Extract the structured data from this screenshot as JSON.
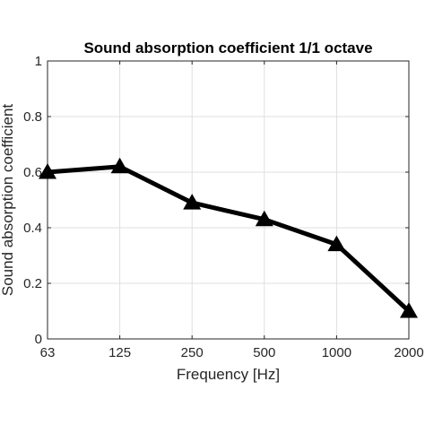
{
  "chart_data": {
    "type": "line",
    "title": "Sound absorption coefficient 1/1 octave",
    "xlabel": "Frequency [Hz]",
    "ylabel": "Sound absorption coefficient",
    "categories": [
      "63",
      "125",
      "250",
      "500",
      "1000",
      "2000"
    ],
    "series": [
      {
        "values": [
          0.6,
          0.62,
          0.49,
          0.43,
          0.34,
          0.1
        ],
        "color": "#000000",
        "marker": "triangle"
      }
    ],
    "ylim": [
      0,
      1
    ],
    "yticks": [
      "0",
      "0.2",
      "0.4",
      "0.6",
      "0.8",
      "1"
    ],
    "grid": true,
    "colors": {
      "line": "#000000",
      "grid": "#dfdfdf",
      "axis": "#262626"
    }
  }
}
